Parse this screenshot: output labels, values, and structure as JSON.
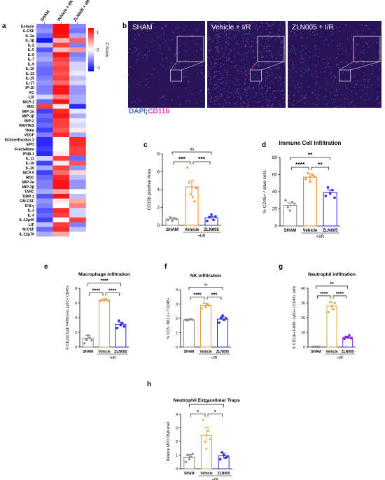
{
  "panel_labels": [
    "a",
    "b",
    "c",
    "d",
    "e",
    "f",
    "g",
    "h"
  ],
  "colors": {
    "sham": "#888888",
    "vehicle": "#ff7f1e",
    "vehicle_e": "#e8963c",
    "vehicle_g": "#d9a43a",
    "zln005": "#2424dd",
    "zln005_g": "#7a1ed8",
    "heat_high": "#ff0000",
    "heat_mid": "#ffffff",
    "heat_low": "#0000ff",
    "microscopy_bg": "#2a1458",
    "dapi": "#3a6cd8",
    "cd11b": "#e040c0"
  },
  "heatmap": {
    "columns": [
      "SHAM",
      "Vehicle + I/R",
      "ZLN005 + I/R"
    ],
    "rows": [
      "Eotaxin",
      "G-CSF",
      "IL-1α",
      "IL-1β",
      "IL-2",
      "IL-5",
      "IL-6",
      "IL-7",
      "IL-9",
      "IL-10",
      "IL-13",
      "IL-15",
      "IL-17",
      "IP-10",
      "KC",
      "LIX",
      "MCP-1",
      "MIG",
      "MIP-1α",
      "MIP-1β",
      "MIP-2",
      "RANTES",
      "TNFα",
      "VEGF",
      "6Ckine/Exodus 2",
      "EPO",
      "Fractalkine",
      "IFNβ-1",
      "IL-11",
      "IL-16",
      "IL-20",
      "MCP-5",
      "MDC",
      "MIP-3α",
      "MIP-3β",
      "TARC",
      "TIMP-1",
      "GM-CSF",
      "IFN-γ",
      "IL-3",
      "IL-4",
      "IL-12p40",
      "LIF",
      "M-CSF",
      "IL-12p70"
    ],
    "legend_title": "Z-Score",
    "legend_ticks": [
      "1",
      "0",
      "-1"
    ],
    "values": [
      [
        -0.6,
        1.15,
        -0.55
      ],
      [
        -0.5,
        1.15,
        -0.65
      ],
      [
        -0.7,
        1.1,
        -0.4
      ],
      [
        -1.1,
        0.35,
        0.75
      ],
      [
        -0.3,
        0.9,
        -0.6
      ],
      [
        -0.8,
        0.3,
        0.5
      ],
      [
        -0.5,
        1.1,
        -0.6
      ],
      [
        -0.4,
        0.9,
        -0.5
      ],
      [
        -0.6,
        0.8,
        -0.2
      ],
      [
        -0.7,
        0.9,
        -0.2
      ],
      [
        -0.7,
        0.8,
        -0.1
      ],
      [
        -0.6,
        0.9,
        -0.3
      ],
      [
        -0.5,
        0.7,
        -0.2
      ],
      [
        -0.6,
        1.1,
        -0.5
      ],
      [
        -0.6,
        1.1,
        -0.5
      ],
      [
        -0.2,
        0.6,
        -0.4
      ],
      [
        -0.7,
        1.1,
        -0.4
      ],
      [
        0.9,
        0.1,
        -1.0
      ],
      [
        -0.9,
        1.0,
        -0.1
      ],
      [
        -0.7,
        1.1,
        -0.4
      ],
      [
        -0.8,
        0.9,
        -0.1
      ],
      [
        -0.7,
        0.9,
        -0.2
      ],
      [
        -0.9,
        0.8,
        0.1
      ],
      [
        -0.6,
        1.0,
        -0.4
      ],
      [
        -1.0,
        0.0,
        1.0
      ],
      [
        -1.0,
        0.0,
        1.0
      ],
      [
        -0.9,
        0.0,
        0.9
      ],
      [
        -1.0,
        0.1,
        0.9
      ],
      [
        -0.2,
        0.9,
        -0.7
      ],
      [
        -0.9,
        0.1,
        0.8
      ],
      [
        -0.4,
        0.9,
        -0.5
      ],
      [
        -0.9,
        0.7,
        0.2
      ],
      [
        -0.7,
        1.0,
        -0.3
      ],
      [
        -0.6,
        1.1,
        -0.5
      ],
      [
        -0.6,
        1.1,
        -0.5
      ],
      [
        -0.4,
        0.4,
        0.0
      ],
      [
        -0.8,
        1.1,
        -0.3
      ],
      [
        -0.5,
        0.1,
        0.4
      ],
      [
        -0.6,
        0.0,
        0.6
      ],
      [
        -0.8,
        1.0,
        -0.2
      ],
      [
        -0.7,
        0.9,
        -0.2
      ],
      [
        -0.9,
        0.0,
        0.9
      ],
      [
        -0.3,
        0.9,
        -0.6
      ],
      [
        -0.7,
        1.0,
        -0.3
      ],
      [
        -0.4,
        0.4,
        0.0
      ]
    ]
  },
  "microscopy": {
    "labels": [
      "SHAM",
      "Vehicle + I/R",
      "ZLN005 + I/R"
    ],
    "stain_dapi": "DAPI",
    "stain_sep": ";",
    "stain_cd11b": "CD11b",
    "signal_density": [
      0.06,
      0.22,
      0.1
    ]
  },
  "chart_data": [
    {
      "panel": "c",
      "type": "bar",
      "title": "",
      "ylabel": "CD11b positive Area",
      "ylim": [
        0,
        8
      ],
      "yticks": [
        0,
        2,
        4,
        6,
        8
      ],
      "categories": [
        "SHAM",
        "Vehicle",
        "ZLN005"
      ],
      "group_label": "+I/R",
      "values": [
        0.7,
        4.3,
        0.85
      ],
      "errors": [
        0.15,
        0.7,
        0.15
      ],
      "points": [
        [
          0.6,
          0.9,
          0.5,
          0.8,
          0.7
        ],
        [
          6.5,
          4.8,
          3.5,
          3.2,
          2.7,
          4.2
        ],
        [
          0.5,
          0.9,
          1.2,
          0.6,
          1.0
        ]
      ],
      "significance": [
        {
          "from": 0,
          "to": 1,
          "label": "***"
        },
        {
          "from": 1,
          "to": 2,
          "label": "***"
        },
        {
          "from": 0,
          "to": 2,
          "label": "ns"
        }
      ]
    },
    {
      "panel": "d",
      "type": "bar",
      "title": "Immune Cell Infiltration",
      "ylabel": "% CD45+ / alive cells",
      "ylim": [
        0,
        80
      ],
      "yticks": [
        0,
        20,
        40,
        60,
        80
      ],
      "categories": [
        "SHAM",
        "Vehicle",
        "ZLN005"
      ],
      "group_label": "+I/R",
      "values": [
        24,
        57,
        39
      ],
      "errors": [
        3,
        4,
        3
      ],
      "points": [
        [
          30,
          22,
          18,
          28,
          26
        ],
        [
          55,
          62,
          52,
          60,
          58
        ],
        [
          35,
          45,
          38,
          42,
          33
        ]
      ],
      "significance": [
        {
          "from": 0,
          "to": 1,
          "label": "****"
        },
        {
          "from": 1,
          "to": 2,
          "label": "**"
        },
        {
          "from": 0,
          "to": 2,
          "label": "**"
        }
      ]
    },
    {
      "panel": "e",
      "type": "bar",
      "title": "Macrophage infiltration",
      "ylabel": "% CD11b high F4/80 low, Ly6C+ CD45+",
      "ylim": [
        0,
        8
      ],
      "yticks": [
        0,
        2,
        4,
        6,
        8
      ],
      "categories": [
        "SHAM",
        "Vehicle",
        "ZLN005"
      ],
      "group_label": "+I/R",
      "values": [
        1.2,
        6.4,
        3.1
      ],
      "errors": [
        0.4,
        0.1,
        0.3
      ],
      "points": [
        [
          0.5,
          1.0,
          1.6,
          1.3,
          0.9
        ],
        [
          6.3,
          6.5,
          6.4,
          6.6,
          6.3
        ],
        [
          2.6,
          3.6,
          3.0,
          3.2,
          2.8
        ]
      ],
      "significance": [
        {
          "from": 0,
          "to": 1,
          "label": "****"
        },
        {
          "from": 1,
          "to": 2,
          "label": "****"
        },
        {
          "from": 0,
          "to": 2,
          "label": "****"
        }
      ]
    },
    {
      "panel": "f",
      "type": "bar",
      "title": "NK infiltration",
      "ylabel": "% CD3-, NK1.1+ / CD45+",
      "ylim": [
        0,
        4
      ],
      "yticks": [
        0,
        1,
        2,
        3,
        4
      ],
      "categories": [
        "SHAM",
        "Vehicle",
        "ZLN005"
      ],
      "group_label": "+I/R",
      "values": [
        1.9,
        2.9,
        1.95
      ],
      "errors": [
        0.05,
        0.15,
        0.15
      ],
      "points": [
        [
          1.9,
          1.85,
          1.9,
          1.95,
          1.9
        ],
        [
          2.7,
          3.1,
          2.8,
          3.0,
          2.9
        ],
        [
          1.7,
          2.0,
          2.2,
          1.9,
          2.0
        ]
      ],
      "significance": [
        {
          "from": 0,
          "to": 1,
          "label": "****"
        },
        {
          "from": 1,
          "to": 2,
          "label": "***"
        },
        {
          "from": 0,
          "to": 2,
          "label": "ns"
        }
      ]
    },
    {
      "panel": "g",
      "type": "bar",
      "title": "Neutrophil infiltration",
      "ylabel": "% CD11b+ F4/80- Ly6G+ / CD45+ cells",
      "ylim": [
        0,
        40
      ],
      "yticks": [
        0,
        10,
        20,
        30,
        40
      ],
      "categories": [
        "SHAM",
        "Vehicle",
        "ZLN005"
      ],
      "group_label": "+I/R",
      "values": [
        0.2,
        28,
        6.5
      ],
      "errors": [
        0.1,
        2.5,
        0.8
      ],
      "points": [
        [
          0.2,
          0.2,
          0.2,
          0.2,
          0.2
        ],
        [
          24,
          31,
          28,
          26,
          30
        ],
        [
          5.5,
          7,
          6.5,
          8,
          6
        ]
      ],
      "significance": [
        {
          "from": 0,
          "to": 1,
          "label": "****"
        },
        {
          "from": 1,
          "to": 2,
          "label": "****"
        },
        {
          "from": 0,
          "to": 2,
          "label": "**"
        }
      ]
    },
    {
      "panel": "h",
      "type": "bar",
      "title": "Neutrophil Extracellular Traps",
      "ylabel": "Relative MPO DNA level",
      "ylim": [
        0,
        4
      ],
      "yticks": [
        0,
        1,
        2,
        3,
        4
      ],
      "categories": [
        "SHAM",
        "Vehicle",
        "ZLN005"
      ],
      "group_label": "+I/R",
      "values": [
        0.85,
        2.45,
        0.95
      ],
      "errors": [
        0.2,
        0.6,
        0.2
      ],
      "points": [
        [
          0.5,
          1.0,
          0.7,
          0.9,
          1.1
        ],
        [
          3.6,
          2.0,
          1.5,
          2.8,
          2.2
        ],
        [
          0.7,
          1.2,
          1.0,
          0.8,
          0.9
        ]
      ],
      "significance": [
        {
          "from": 0,
          "to": 1,
          "label": "*"
        },
        {
          "from": 1,
          "to": 2,
          "label": "*"
        },
        {
          "from": 0,
          "to": 2,
          "label": "ns"
        }
      ]
    }
  ]
}
